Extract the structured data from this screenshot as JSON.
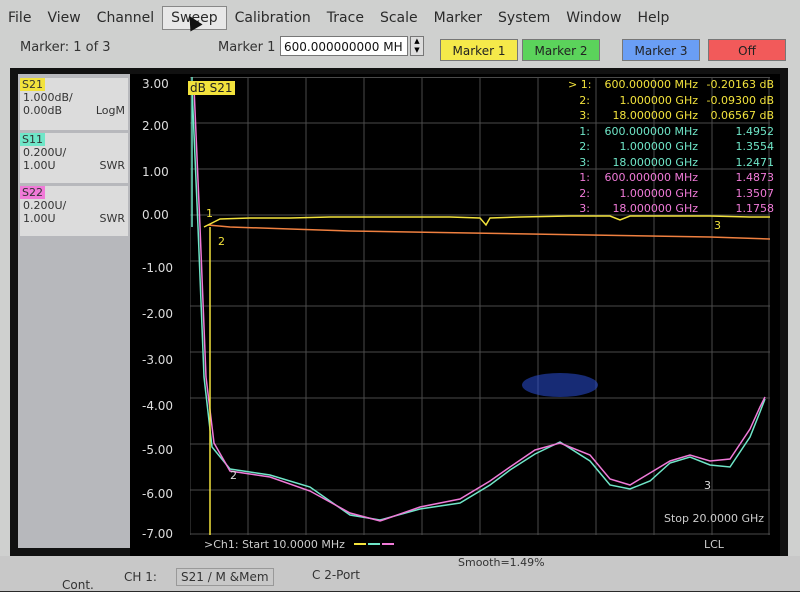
{
  "menu": {
    "items": [
      "File",
      "View",
      "Channel",
      "Sweep",
      "Calibration",
      "Trace",
      "Scale",
      "Marker",
      "System",
      "Window",
      "Help"
    ],
    "active": "Sweep"
  },
  "toolbar": {
    "marker_count": "Marker: 1 of 3",
    "marker_sel_label": "Marker 1",
    "marker_value": "600.000000000 MH",
    "buttons": [
      {
        "label": "Marker 1",
        "color": "#f5e94a"
      },
      {
        "label": "Marker 2",
        "color": "#5bd35b"
      },
      {
        "label": "Marker 3",
        "color": "#6a9ef5"
      },
      {
        "label": "Off",
        "color": "#f25a5a"
      }
    ]
  },
  "traces": [
    {
      "name": "S21",
      "scale": "1.000dB/",
      "ref": "0.00dB",
      "format": "LogM",
      "color": "#f2e23c"
    },
    {
      "name": "S11",
      "scale": "0.200U/",
      "ref": "1.00U",
      "format": "SWR",
      "color": "#6fe6c8"
    },
    {
      "name": "S22",
      "scale": "0.200U/",
      "ref": "1.00U",
      "format": "SWR",
      "color": "#f07ad8"
    }
  ],
  "plot": {
    "trace_tag": "dB S21",
    "y_labels": [
      "3.00",
      "2.00",
      "1.00",
      "0.00",
      "-1.00",
      "-2.00",
      "-3.00",
      "-4.00",
      "-5.00",
      "-6.00",
      "-7.00"
    ],
    "start": ">Ch1: Start  10.0000 MHz",
    "stop": "Stop  20.0000 GHz",
    "smooth": "Smooth=1.49%",
    "lcl": "LCL"
  },
  "marker_table": [
    {
      "idx": "> 1:",
      "freq": "600.000000 MHz",
      "value": "-0.20163 dB",
      "color": "#f2e23c"
    },
    {
      "idx": "2:",
      "freq": "1.000000 GHz",
      "value": "-0.09300 dB",
      "color": "#f2e23c"
    },
    {
      "idx": "3:",
      "freq": "18.000000 GHz",
      "value": "0.06567 dB",
      "color": "#f2e23c"
    },
    {
      "idx": "1:",
      "freq": "600.000000 MHz",
      "value": "1.4952",
      "color": "#6fe6c8"
    },
    {
      "idx": "2:",
      "freq": "1.000000 GHz",
      "value": "1.3554",
      "color": "#6fe6c8"
    },
    {
      "idx": "3:",
      "freq": "18.000000 GHz",
      "value": "1.2471",
      "color": "#6fe6c8"
    },
    {
      "idx": "1:",
      "freq": "600.000000 MHz",
      "value": "1.4873",
      "color": "#f07ad8"
    },
    {
      "idx": "2:",
      "freq": "1.000000 GHz",
      "value": "1.3507",
      "color": "#f07ad8"
    },
    {
      "idx": "3:",
      "freq": "18.000000 GHz",
      "value": "1.1758",
      "color": "#f07ad8"
    }
  ],
  "statusbar": {
    "left": "Cont.",
    "ch": "CH 1:",
    "trace": "S21 / M  &Mem",
    "port": "C  2-Port"
  }
}
